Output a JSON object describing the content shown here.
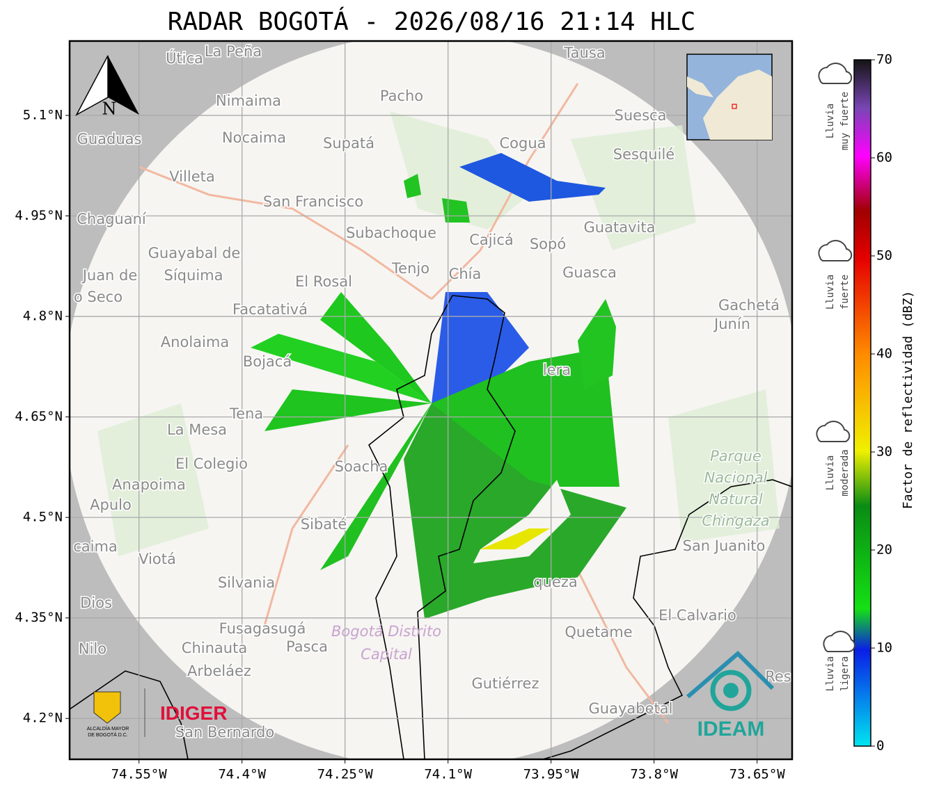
{
  "map": {
    "title": "RADAR BOGOTÁ - 2026/08/16 21:14 HLC",
    "xlim": [
      -74.651,
      -73.599
    ],
    "ylim": [
      4.139,
      5.211
    ],
    "xticks": [
      {
        "value": -74.55,
        "label": "74.55°W"
      },
      {
        "value": -74.4,
        "label": "74.4°W"
      },
      {
        "value": -74.25,
        "label": "74.25°W"
      },
      {
        "value": -74.1,
        "label": "74.1°W"
      },
      {
        "value": -73.95,
        "label": "73.95°W"
      },
      {
        "value": -73.8,
        "label": "73.8°W"
      },
      {
        "value": -73.65,
        "label": "73.65°W"
      }
    ],
    "yticks": [
      {
        "value": 5.1,
        "label": "5.1°N"
      },
      {
        "value": 4.95,
        "label": "4.95°N"
      },
      {
        "value": 4.8,
        "label": "4.8°N"
      },
      {
        "value": 4.65,
        "label": "4.65°N"
      },
      {
        "value": 4.5,
        "label": "4.5°N"
      },
      {
        "value": 4.35,
        "label": "4.35°N"
      },
      {
        "value": 4.2,
        "label": "4.2°N"
      }
    ],
    "north": "N",
    "places": [
      "Útica",
      "La Peña",
      "Tausa",
      "Pacho",
      "Nimaima",
      "Guaduas",
      "Nocaima",
      "Supatá",
      "Cogua",
      "Suesca",
      "Sesquilé",
      "Villeta",
      "San Francisco",
      "Subachoque",
      "Chaguaní",
      "Cajicá",
      "Sopó",
      "Guatavita",
      "Guayabal de",
      "Síquima",
      "Juan de",
      "o Seco",
      "Tenjo",
      "Chía",
      "Guasca",
      "El Rosal",
      "Facatativá",
      "Gachetá",
      "Junín",
      "Anolaima",
      "Bojacá",
      "Tena",
      "La Mesa",
      "El Colegio",
      "Soacha",
      "Anapoima",
      "Apulo",
      "caima",
      "Viotá",
      "Sibaté",
      "San Juanito",
      "Silvania",
      "Dios",
      "queza",
      "El Calvario",
      "Fusagasugá",
      "Quetame",
      "Nilo",
      "Chinauta",
      "Pasca",
      "Arbeláez",
      "Gutiérrez",
      "Guayabetal",
      "San Bernardo",
      "Res",
      "lera"
    ],
    "park": [
      "Parque",
      "Nacional",
      "Natural",
      "Chingaza"
    ],
    "district": [
      "Bogotá Distrito",
      "Capital"
    ],
    "logos": {
      "alcaldia": [
        "ALCALDÍA MAYOR",
        "DE BOGOTÁ D.C."
      ],
      "idiger": "IDIGER",
      "ideam": "IDEAM"
    },
    "colorbar": {
      "label": "Factor de reflectividad (dBZ)",
      "lim": [
        0,
        70
      ],
      "ticks": [
        0,
        10,
        20,
        30,
        40,
        50,
        60,
        70
      ],
      "classes": [
        [
          "Lluvia",
          "muy fuerte"
        ],
        [
          "Lluvia",
          "fuerte"
        ],
        [
          "Lluvia",
          "moderada"
        ],
        [
          "Lluvia",
          "ligera"
        ]
      ]
    }
  }
}
